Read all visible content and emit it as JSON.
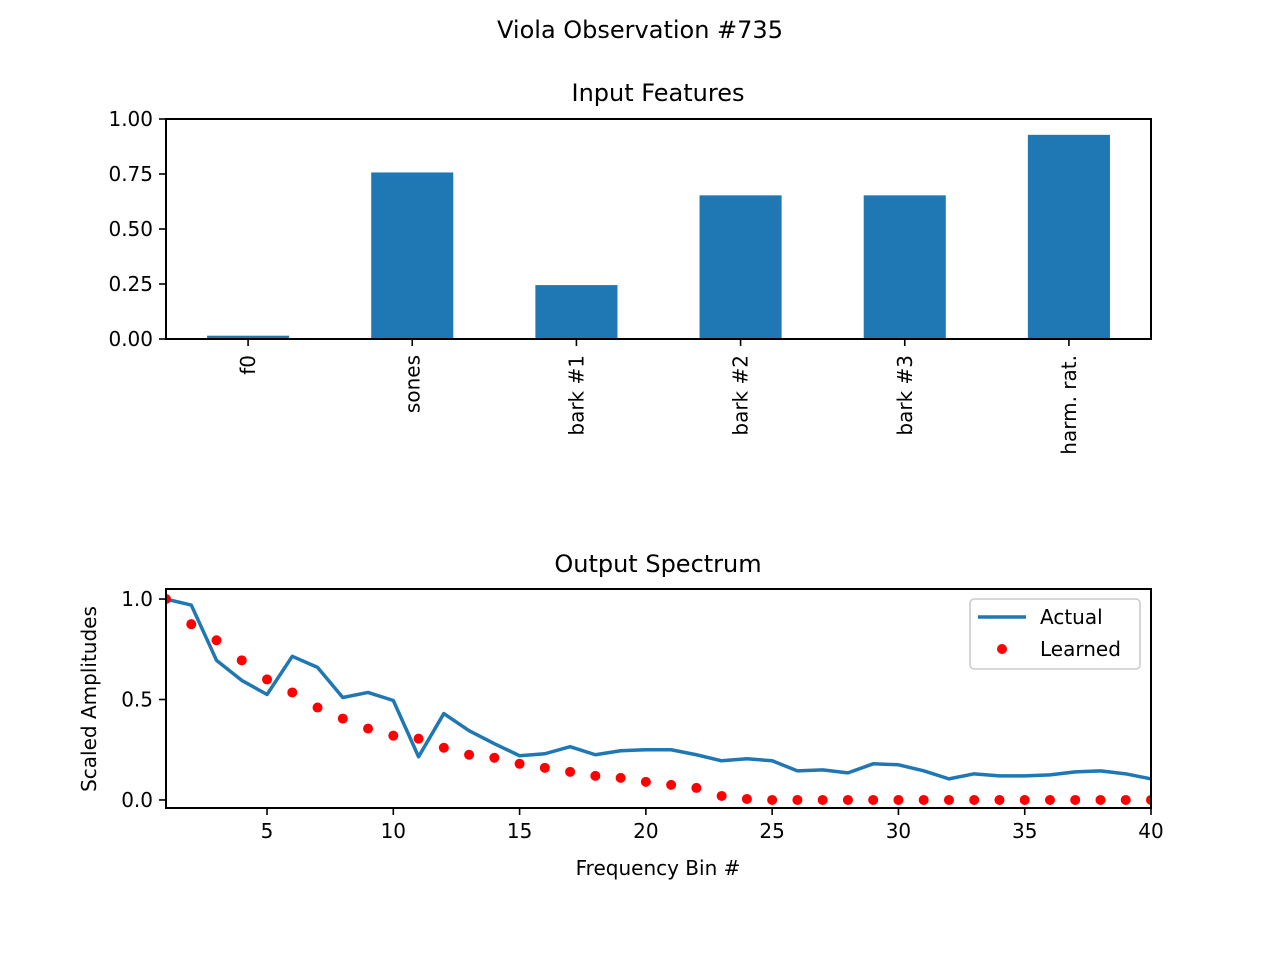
{
  "figure": {
    "suptitle": "Viola  Observation #735"
  },
  "chart_data": [
    {
      "type": "bar",
      "title": "Input Features",
      "xlabel": "",
      "ylabel": "",
      "categories": [
        "f0",
        "sones",
        "bark #1",
        "bark #2",
        "bark #3",
        "harm. rat."
      ],
      "values": [
        0.015,
        0.757,
        0.245,
        0.653,
        0.653,
        0.928
      ],
      "ylim": [
        0,
        1.0
      ],
      "yticks": [
        0.0,
        0.25,
        0.5,
        0.75,
        1.0
      ],
      "ytick_labels": [
        "0.00",
        "0.25",
        "0.50",
        "0.75",
        "1.00"
      ],
      "color": "#1f77b4",
      "xtick_rotation": "vertical",
      "grid": false
    },
    {
      "type": "line",
      "title": "Output Spectrum",
      "xlabel": "Frequency Bin #",
      "ylabel": "Scaled Amplitudes",
      "xlim": [
        1,
        40
      ],
      "ylim": [
        -0.04,
        1.05
      ],
      "xticks": [
        5,
        10,
        15,
        20,
        25,
        30,
        35,
        40
      ],
      "yticks": [
        0.0,
        0.5,
        1.0
      ],
      "ytick_labels": [
        "0.0",
        "0.5",
        "1.0"
      ],
      "legend_position": "top-right",
      "grid": false,
      "x": [
        1,
        2,
        3,
        4,
        5,
        6,
        7,
        8,
        9,
        10,
        11,
        12,
        13,
        14,
        15,
        16,
        17,
        18,
        19,
        20,
        21,
        22,
        23,
        24,
        25,
        26,
        27,
        28,
        29,
        30,
        31,
        32,
        33,
        34,
        35,
        36,
        37,
        38,
        39,
        40
      ],
      "series": [
        {
          "name": "Actual",
          "style": "line",
          "color": "#1f77b4",
          "values": [
            1.0,
            0.97,
            0.695,
            0.595,
            0.525,
            0.715,
            0.66,
            0.51,
            0.535,
            0.495,
            0.215,
            0.43,
            0.345,
            0.28,
            0.22,
            0.23,
            0.265,
            0.225,
            0.245,
            0.25,
            0.25,
            0.225,
            0.195,
            0.205,
            0.195,
            0.145,
            0.15,
            0.135,
            0.18,
            0.175,
            0.145,
            0.105,
            0.13,
            0.12,
            0.12,
            0.125,
            0.14,
            0.145,
            0.13,
            0.105
          ]
        },
        {
          "name": "Learned",
          "style": "markers",
          "color": "#ff0000",
          "values": [
            1.0,
            0.875,
            0.795,
            0.695,
            0.6,
            0.535,
            0.46,
            0.405,
            0.355,
            0.32,
            0.305,
            0.26,
            0.225,
            0.21,
            0.18,
            0.16,
            0.14,
            0.12,
            0.11,
            0.09,
            0.075,
            0.06,
            0.02,
            0.005,
            0.0,
            0.0,
            0.0,
            0.0,
            0.0,
            0.0,
            0.0,
            0.0,
            0.0,
            0.0,
            0.0,
            0.0,
            0.0,
            0.0,
            0.0,
            0.0
          ]
        }
      ]
    }
  ]
}
